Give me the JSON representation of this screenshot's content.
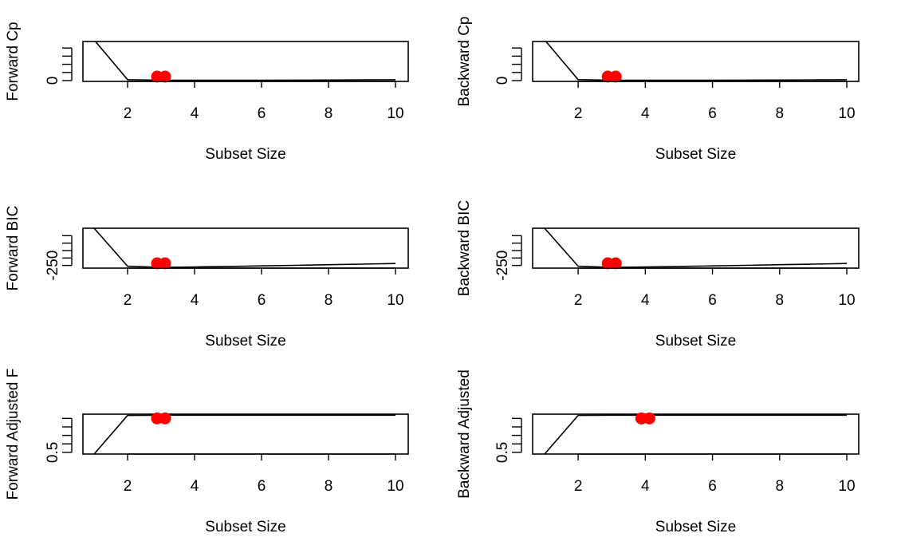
{
  "chart_data": [
    {
      "type": "line",
      "xlabel": "Subset Size",
      "ylabel": "Forward Cp",
      "xlim": [
        1,
        10
      ],
      "ylim": [
        -10,
        480
      ],
      "x_ticks": [
        2,
        4,
        6,
        8,
        10
      ],
      "y_ticks": [
        0,
        100,
        200,
        300,
        400
      ],
      "y_tick_labels": [
        "0",
        "",
        "",
        "",
        ""
      ],
      "x": [
        1,
        2,
        3,
        4,
        5,
        6,
        7,
        8,
        9,
        10
      ],
      "y": [
        500,
        12,
        5,
        5,
        5,
        5,
        6,
        7,
        9,
        11
      ],
      "highlight": [
        {
          "x": 3,
          "y": 5
        }
      ],
      "highlight_color": "#ff0000"
    },
    {
      "type": "line",
      "xlabel": "Subset Size",
      "ylabel": "Backward Cp",
      "xlim": [
        1,
        10
      ],
      "ylim": [
        -10,
        480
      ],
      "x_ticks": [
        2,
        4,
        6,
        8,
        10
      ],
      "y_ticks": [
        0,
        100,
        200,
        300,
        400
      ],
      "y_tick_labels": [
        "0",
        "",
        "",
        "",
        ""
      ],
      "x": [
        1,
        2,
        3,
        4,
        5,
        6,
        7,
        8,
        9,
        10
      ],
      "y": [
        500,
        12,
        5,
        5,
        5,
        5,
        6,
        7,
        9,
        11
      ],
      "highlight": [
        {
          "x": 3,
          "y": 5
        }
      ],
      "highlight_color": "#ff0000"
    },
    {
      "type": "line",
      "xlabel": "Subset Size",
      "ylabel": "Forward BIC",
      "xlim": [
        1,
        10
      ],
      "ylim": [
        -268,
        0
      ],
      "x_ticks": [
        2,
        4,
        6,
        8,
        10
      ],
      "y_ticks": [
        -250,
        -200,
        -150,
        -100,
        -50
      ],
      "y_tick_labels": [
        "-250",
        "",
        "",
        "",
        ""
      ],
      "x": [
        1,
        2,
        3,
        4,
        5,
        6,
        7,
        8,
        9,
        10
      ],
      "y": [
        0,
        -255,
        -263,
        -260,
        -257,
        -253,
        -249,
        -245,
        -241,
        -237
      ],
      "highlight": [
        {
          "x": 3,
          "y": -263
        }
      ],
      "highlight_color": "#ff0000"
    },
    {
      "type": "line",
      "xlabel": "Subset Size",
      "ylabel": "Backward BIC",
      "xlim": [
        1,
        10
      ],
      "ylim": [
        -268,
        0
      ],
      "x_ticks": [
        2,
        4,
        6,
        8,
        10
      ],
      "y_ticks": [
        -250,
        -200,
        -150,
        -100,
        -50
      ],
      "y_tick_labels": [
        "-250",
        "",
        "",
        "",
        ""
      ],
      "x": [
        1,
        2,
        3,
        4,
        5,
        6,
        7,
        8,
        9,
        10
      ],
      "y": [
        0,
        -255,
        -263,
        -260,
        -257,
        -253,
        -249,
        -245,
        -241,
        -237
      ],
      "highlight": [
        {
          "x": 3,
          "y": -263
        }
      ],
      "highlight_color": "#ff0000"
    },
    {
      "type": "line",
      "xlabel": "Subset Size",
      "ylabel": "Forward Adjusted F",
      "xlim": [
        1,
        10
      ],
      "ylim": [
        0.48,
        0.95
      ],
      "x_ticks": [
        2,
        4,
        6,
        8,
        10
      ],
      "y_ticks": [
        0.5,
        0.6,
        0.7,
        0.8,
        0.9
      ],
      "y_tick_labels": [
        "0.5",
        "",
        "",
        "",
        ""
      ],
      "x": [
        1,
        2,
        3,
        4,
        5,
        6,
        7,
        8,
        9,
        10
      ],
      "y": [
        0.48,
        0.935,
        0.938,
        0.938,
        0.938,
        0.938,
        0.938,
        0.938,
        0.938,
        0.938
      ],
      "highlight": [
        {
          "x": 3,
          "y": 0.9
        }
      ],
      "highlight_color": "#ff0000"
    },
    {
      "type": "line",
      "xlabel": "Subset Size",
      "ylabel": "Backward Adjusted",
      "xlim": [
        1,
        10
      ],
      "ylim": [
        0.48,
        0.95
      ],
      "x_ticks": [
        2,
        4,
        6,
        8,
        10
      ],
      "y_ticks": [
        0.5,
        0.6,
        0.7,
        0.8,
        0.9
      ],
      "y_tick_labels": [
        "0.5",
        "",
        "",
        "",
        ""
      ],
      "x": [
        1,
        2,
        3,
        4,
        5,
        6,
        7,
        8,
        9,
        10
      ],
      "y": [
        0.48,
        0.935,
        0.938,
        0.938,
        0.938,
        0.938,
        0.938,
        0.938,
        0.938,
        0.938
      ],
      "highlight": [
        {
          "x": 4,
          "y": 0.9
        }
      ],
      "highlight_color": "#ff0000"
    }
  ]
}
